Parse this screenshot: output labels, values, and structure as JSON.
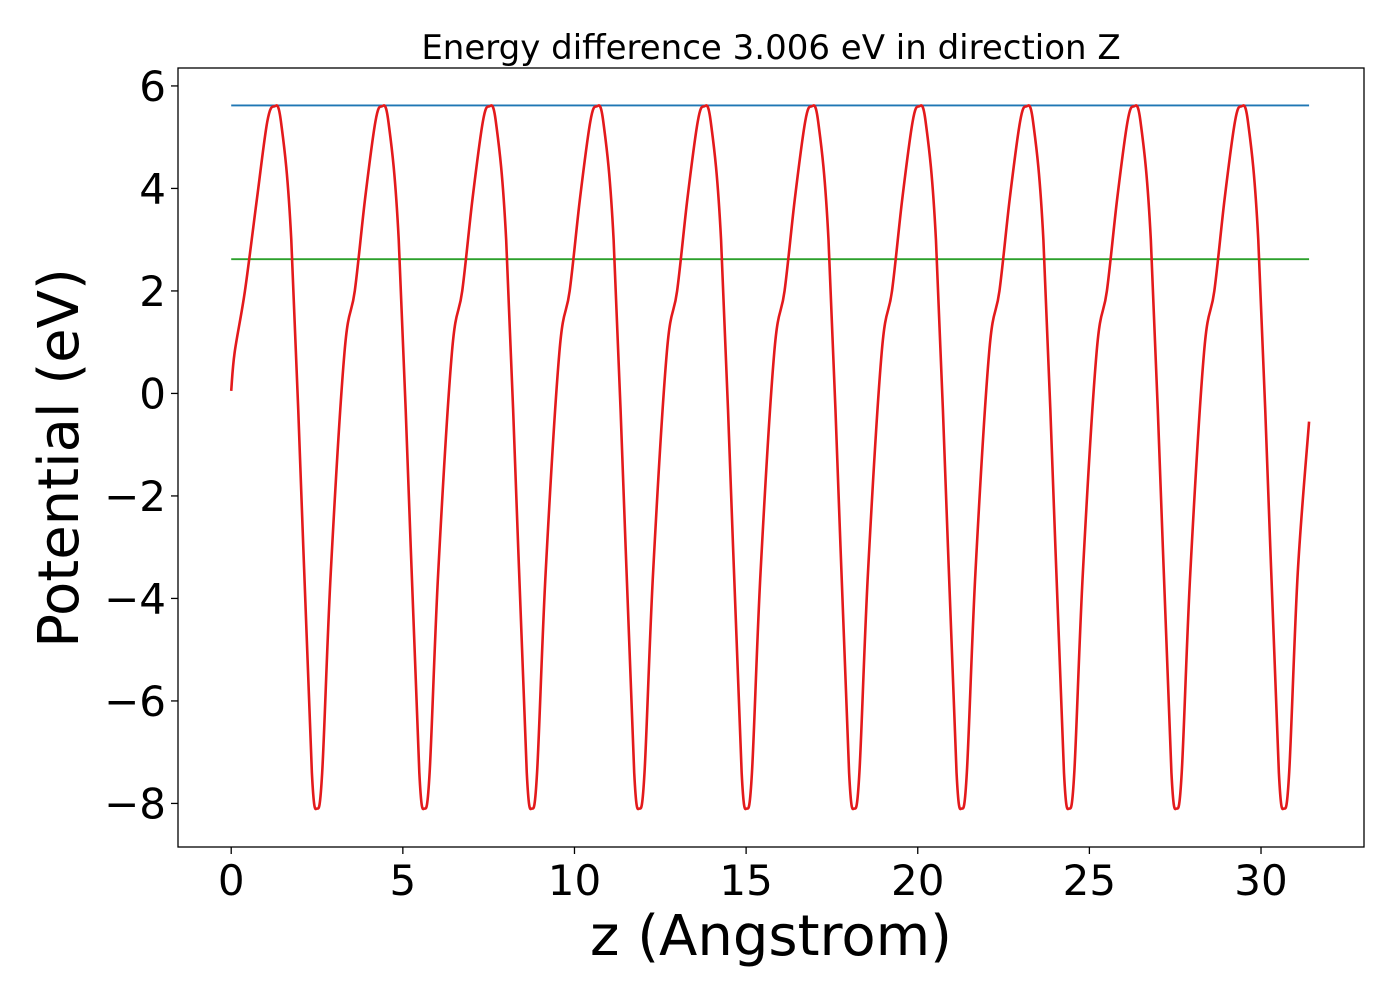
{
  "chart_data": {
    "type": "line",
    "title": "Energy difference 3.006 eV in direction Z",
    "xlabel": "z (Angstrom)",
    "ylabel": "Potential (eV)",
    "xlim": [
      -1.55,
      33.0
    ],
    "ylim": [
      -8.85,
      6.35
    ],
    "xticks": [
      0,
      5,
      10,
      15,
      20,
      25,
      30
    ],
    "xtick_labels": [
      "0",
      "5",
      "10",
      "15",
      "20",
      "25",
      "30"
    ],
    "yticks": [
      -8,
      -6,
      -4,
      -2,
      0,
      2,
      4,
      6
    ],
    "ytick_labels": [
      "−8",
      "−6",
      "−4",
      "−2",
      "0",
      "2",
      "4",
      "6"
    ],
    "grid": false,
    "series": [
      {
        "color": "#e31a1c",
        "x": [
          0,
          0.1,
          0.4,
          0.75,
          1.05,
          1.25,
          1.45,
          1.75,
          2.1,
          2.35,
          2.5,
          2.65,
          2.9,
          3.3,
          3.6,
          3.9,
          4.2,
          4.38,
          4.58,
          4.88,
          5.23,
          5.48,
          5.63,
          5.78,
          6.03,
          6.43,
          6.73,
          7.03,
          7.33,
          7.51,
          7.71,
          8.01,
          8.36,
          8.61,
          8.76,
          8.91,
          9.16,
          9.56,
          9.86,
          10.16,
          10.46,
          10.64,
          10.84,
          11.14,
          11.49,
          11.74,
          11.89,
          12.04,
          12.29,
          12.69,
          12.99,
          13.29,
          13.59,
          13.77,
          13.97,
          14.27,
          14.62,
          14.87,
          15.02,
          15.17,
          15.42,
          15.82,
          16.12,
          16.42,
          16.72,
          16.9,
          17.1,
          17.4,
          17.75,
          18.0,
          18.15,
          18.3,
          18.55,
          18.95,
          19.25,
          19.55,
          19.85,
          20.03,
          20.23,
          20.53,
          20.88,
          21.13,
          21.28,
          21.43,
          21.68,
          22.08,
          22.38,
          22.68,
          22.98,
          23.16,
          23.36,
          23.66,
          24.01,
          24.26,
          24.41,
          24.56,
          24.81,
          25.21,
          25.51,
          25.81,
          26.11,
          26.29,
          26.49,
          26.79,
          27.14,
          27.39,
          27.54,
          27.69,
          27.94,
          28.34,
          28.64,
          28.94,
          29.24,
          29.42,
          29.62,
          29.92,
          30.27,
          30.52,
          30.67,
          30.82,
          31.07,
          31.4
        ],
        "y": [
          0.05,
          0.8,
          2.0,
          3.8,
          5.3,
          5.6,
          5.3,
          3.0,
          -3.0,
          -7.4,
          -8.1,
          -7.4,
          -3.5,
          0.8,
          2.0,
          3.8,
          5.3,
          5.6,
          5.3,
          3.0,
          -3.0,
          -7.4,
          -8.1,
          -7.4,
          -3.5,
          0.8,
          2.0,
          3.8,
          5.3,
          5.6,
          5.3,
          3.0,
          -3.0,
          -7.4,
          -8.1,
          -7.4,
          -3.5,
          0.8,
          2.0,
          3.8,
          5.3,
          5.6,
          5.3,
          3.0,
          -3.0,
          -7.4,
          -8.1,
          -7.4,
          -3.5,
          0.8,
          2.0,
          3.8,
          5.3,
          5.6,
          5.3,
          3.0,
          -3.0,
          -7.4,
          -8.1,
          -7.4,
          -3.5,
          0.8,
          2.0,
          3.8,
          5.3,
          5.6,
          5.3,
          3.0,
          -3.0,
          -7.4,
          -8.1,
          -7.4,
          -3.5,
          0.8,
          2.0,
          3.8,
          5.3,
          5.6,
          5.3,
          3.0,
          -3.0,
          -7.4,
          -8.1,
          -7.4,
          -3.5,
          0.8,
          2.0,
          3.8,
          5.3,
          5.6,
          5.3,
          3.0,
          -3.0,
          -7.4,
          -8.1,
          -7.4,
          -3.5,
          0.8,
          2.0,
          3.8,
          5.3,
          5.6,
          5.3,
          3.0,
          -3.0,
          -7.4,
          -8.1,
          -7.4,
          -3.5,
          0.8,
          2.0,
          3.8,
          5.3,
          5.6,
          5.3,
          3.0,
          -3.0,
          -7.4,
          -8.1,
          -7.4,
          -3.5,
          -0.55
        ]
      },
      {
        "color": "#1f77b4",
        "x": [
          0,
          31.4
        ],
        "y": [
          5.62,
          5.62
        ]
      },
      {
        "color": "#2ca02c",
        "x": [
          0,
          31.4
        ],
        "y": [
          2.62,
          2.62
        ]
      }
    ]
  }
}
